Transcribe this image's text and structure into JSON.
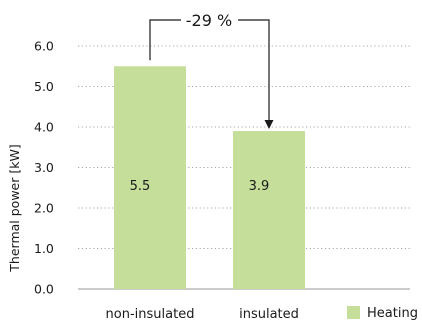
{
  "chart_data": {
    "type": "bar",
    "categories": [
      "non-insulated",
      "insulated"
    ],
    "series": [
      {
        "name": "Heating",
        "values": [
          5.5,
          3.9
        ],
        "color": "#c5df9b"
      }
    ],
    "data_labels": [
      "5.5",
      "3.9"
    ],
    "y_ticks": [
      "0.0",
      "1.0",
      "2.0",
      "3.0",
      "4.0",
      "5.0",
      "6.0"
    ],
    "ylim": [
      0,
      6
    ],
    "ylabel": "Thermal power [kW]",
    "xlabel": "",
    "title": "",
    "grid": "horizontal-dotted",
    "legend": {
      "position": "bottom-right",
      "label": "Heating"
    },
    "annotation": {
      "text": "-29 %",
      "from": "non-insulated",
      "to": "insulated"
    }
  }
}
